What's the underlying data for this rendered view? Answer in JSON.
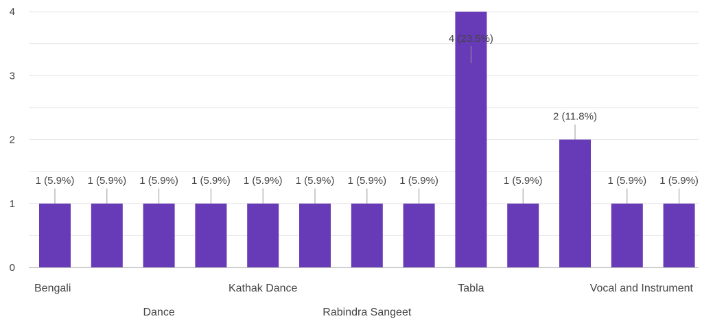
{
  "chart_data": {
    "type": "bar",
    "categories": [
      "Bengali",
      "",
      "Dance",
      "",
      "Kathak Dance",
      "",
      "Rabindra Sangeet",
      "",
      "Tabla",
      "",
      "",
      "",
      "Vocal and Instrument"
    ],
    "values": [
      1,
      1,
      1,
      1,
      1,
      1,
      1,
      1,
      4,
      1,
      2,
      1,
      1
    ],
    "data_labels": [
      "1 (5.9%)",
      "1 (5.9%)",
      "1 (5.9%)",
      "1 (5.9%)",
      "1 (5.9%)",
      "1 (5.9%)",
      "1 (5.9%)",
      "1 (5.9%)",
      "4 (23.5%)",
      "1 (5.9%)",
      "2 (11.8%)",
      "1 (5.9%)",
      "1 (5.9%)"
    ],
    "ylim": [
      0,
      4
    ],
    "yticks": [
      "0",
      "1",
      "2",
      "3",
      "4"
    ],
    "grid": true,
    "legend": "none",
    "bar_color": "#673ab7",
    "title": "",
    "xlabel": "",
    "ylabel": ""
  }
}
